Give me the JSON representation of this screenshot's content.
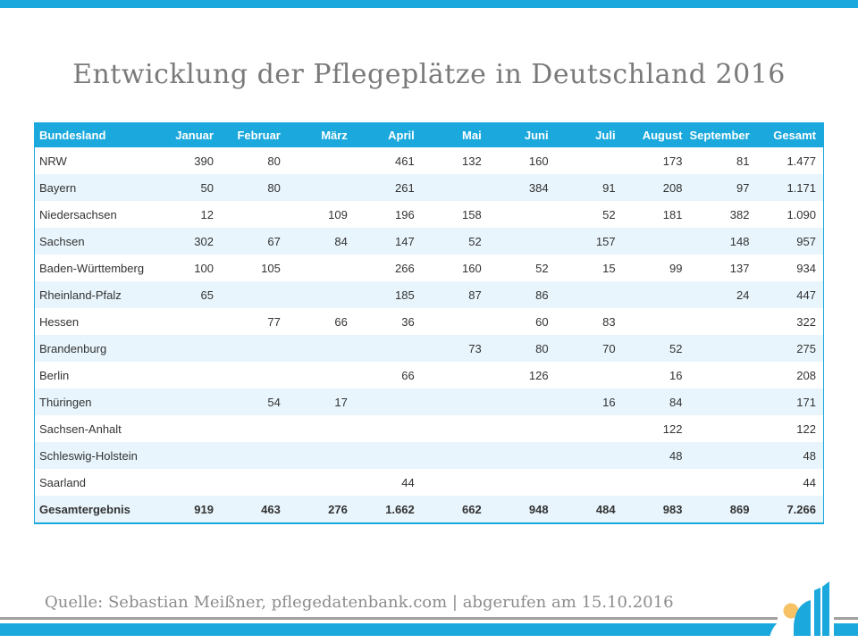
{
  "slide": {
    "title": "Entwicklung der Pflegeplätze in Deutschland 2016",
    "source_note": "Quelle: Sebastian Meißner, pflegedatenbank.com | abgerufen am 15.10.2016"
  },
  "colors": {
    "accent_teal": "#1BA8DC",
    "row_stripe": "#E8F5FC",
    "title_gray": "#7A7A7A",
    "source_gray": "#8C8C8C",
    "rule_gray": "#A0A0A0",
    "logo_yellow": "#F7C265",
    "table_text": "#333333",
    "header_text": "#FFFFFF"
  },
  "logo": {
    "description": "three rising teal bars with curved swoosh and yellow dot"
  },
  "chart_data": {
    "type": "table",
    "title": "Entwicklung der Pflegeplätze in Deutschland 2016",
    "columns": [
      "Bundesland",
      "Januar",
      "Februar",
      "März",
      "April",
      "Mai",
      "Juni",
      "Juli",
      "August",
      "September",
      "Gesamt"
    ],
    "rows": [
      {
        "label": "NRW",
        "values": [
          "390",
          "80",
          "",
          "461",
          "132",
          "160",
          "",
          "173",
          "81",
          "1.477"
        ]
      },
      {
        "label": "Bayern",
        "values": [
          "50",
          "80",
          "",
          "261",
          "",
          "384",
          "91",
          "208",
          "97",
          "1.171"
        ]
      },
      {
        "label": "Niedersachsen",
        "values": [
          "12",
          "",
          "109",
          "196",
          "158",
          "",
          "52",
          "181",
          "382",
          "1.090"
        ]
      },
      {
        "label": "Sachsen",
        "values": [
          "302",
          "67",
          "84",
          "147",
          "52",
          "",
          "157",
          "",
          "148",
          "957"
        ]
      },
      {
        "label": "Baden-Württemberg",
        "values": [
          "100",
          "105",
          "",
          "266",
          "160",
          "52",
          "15",
          "99",
          "137",
          "934"
        ]
      },
      {
        "label": "Rheinland-Pfalz",
        "values": [
          "65",
          "",
          "",
          "185",
          "87",
          "86",
          "",
          "",
          "24",
          "447"
        ]
      },
      {
        "label": "Hessen",
        "values": [
          "",
          "77",
          "66",
          "36",
          "",
          "60",
          "83",
          "",
          "",
          "322"
        ]
      },
      {
        "label": "Brandenburg",
        "values": [
          "",
          "",
          "",
          "",
          "73",
          "80",
          "70",
          "52",
          "",
          "275"
        ]
      },
      {
        "label": "Berlin",
        "values": [
          "",
          "",
          "",
          "66",
          "",
          "126",
          "",
          "16",
          "",
          "208"
        ]
      },
      {
        "label": "Thüringen",
        "values": [
          "",
          "54",
          "17",
          "",
          "",
          "",
          "16",
          "84",
          "",
          "171"
        ]
      },
      {
        "label": "Sachsen-Anhalt",
        "values": [
          "",
          "",
          "",
          "",
          "",
          "",
          "",
          "122",
          "",
          "122"
        ]
      },
      {
        "label": "Schleswig-Holstein",
        "values": [
          "",
          "",
          "",
          "",
          "",
          "",
          "",
          "48",
          "",
          "48"
        ]
      },
      {
        "label": "Saarland",
        "values": [
          "",
          "",
          "",
          "44",
          "",
          "",
          "",
          "",
          "",
          "44"
        ]
      },
      {
        "label": "Gesamtergebnis",
        "bold": true,
        "values": [
          "919",
          "463",
          "276",
          "1.662",
          "662",
          "948",
          "484",
          "983",
          "869",
          "7.266"
        ]
      }
    ]
  }
}
